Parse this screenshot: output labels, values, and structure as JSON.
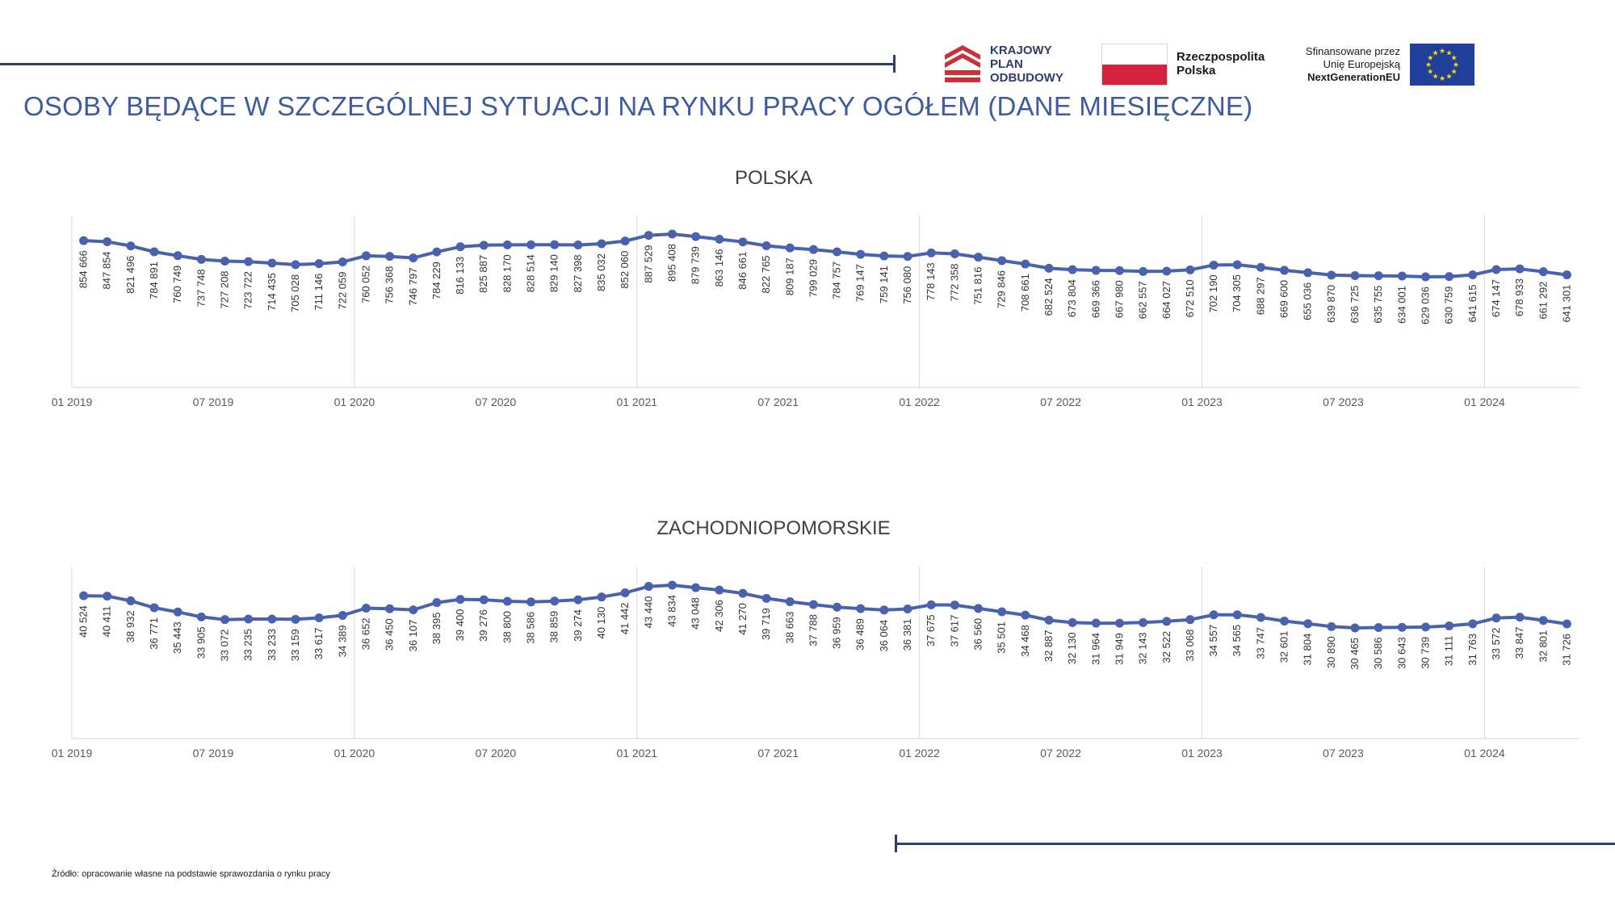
{
  "header": {
    "title": "OSOBY BĘDĄCE W SZCZEGÓLNEJ SYTUACJI NA RYNKU PRACY OGÓŁEM (DANE MIESIĘCZNE)"
  },
  "logos": {
    "kpo": {
      "line1": "KRAJOWY",
      "line2": "PLAN",
      "line3": "ODBUDOWY"
    },
    "rp": {
      "line1": "Rzeczpospolita",
      "line2": "Polska"
    },
    "eu": {
      "line1": "Sfinansowane przez",
      "line2": "Unię Europejską",
      "line3": "NextGenerationEU"
    }
  },
  "colors": {
    "accent": "#3e5aa3",
    "line": "#4a62ad",
    "rule": "#2f3c6e",
    "flag_red": "#d4213d",
    "eu_blue": "#1f3f9a",
    "eu_star": "#ffdd00"
  },
  "source": "Źródło: opracowanie własne na podstawie sprawozdania o rynku pracy",
  "chart_data": [
    {
      "type": "line",
      "title": "POLSKA",
      "x_tick_labels": [
        "01 2019",
        "07 2019",
        "01 2020",
        "07 2020",
        "01 2021",
        "07 2021",
        "01 2022",
        "07 2022",
        "01 2023",
        "07 2023",
        "01 2024"
      ],
      "values": [
        854666,
        847854,
        821496,
        784891,
        760749,
        737748,
        727208,
        723722,
        714435,
        705028,
        711146,
        722059,
        760052,
        756368,
        746797,
        784229,
        816133,
        825887,
        828170,
        828514,
        829140,
        827398,
        835032,
        852060,
        887529,
        895408,
        879739,
        863146,
        846661,
        822765,
        809187,
        799029,
        784757,
        769147,
        759141,
        756080,
        778143,
        772358,
        751816,
        729846,
        708661,
        682524,
        673804,
        669366,
        667980,
        662557,
        664027,
        672510,
        702190,
        704305,
        688297,
        669600,
        655036,
        639870,
        636725,
        635755,
        634001,
        629036,
        630759,
        641615,
        674147,
        678933,
        661292,
        641301
      ],
      "labels": [
        "854 666",
        "847 854",
        "821 496",
        "784 891",
        "760 749",
        "737 748",
        "727 208",
        "723 722",
        "714 435",
        "705 028",
        "711 146",
        "722 059",
        "760 052",
        "756 368",
        "746 797",
        "784 229",
        "816 133",
        "825 887",
        "828 170",
        "828 514",
        "829 140",
        "827 398",
        "835 032",
        "852 060",
        "887 529",
        "895 408",
        "879 739",
        "863 146",
        "846 661",
        "822 765",
        "809 187",
        "799 029",
        "784 757",
        "769 147",
        "759 141",
        "756 080",
        "778 143",
        "772 358",
        "751 816",
        "729 846",
        "708 661",
        "682 524",
        "673 804",
        "669 366",
        "667 980",
        "662 557",
        "664 027",
        "672 510",
        "702 190",
        "704 305",
        "688 297",
        "669 600",
        "655 036",
        "639 870",
        "636 725",
        "635 755",
        "634 001",
        "629 036",
        "630 759",
        "641 615",
        "674 147",
        "678 933",
        "661 292",
        "641 301"
      ]
    },
    {
      "type": "line",
      "title": "ZACHODNIOPOMORSKIE",
      "x_tick_labels": [
        "01 2019",
        "07 2019",
        "01 2020",
        "07 2020",
        "01 2021",
        "07 2021",
        "01 2022",
        "07 2022",
        "01 2023",
        "07 2023",
        "01 2024"
      ],
      "values": [
        40524,
        40411,
        38932,
        36771,
        35443,
        33905,
        33072,
        33235,
        33233,
        33159,
        33617,
        34389,
        36652,
        36450,
        36107,
        38395,
        39400,
        39276,
        38800,
        38586,
        38859,
        39274,
        40130,
        41442,
        43440,
        43834,
        43048,
        42306,
        41270,
        39719,
        38663,
        37788,
        36959,
        36489,
        36064,
        36381,
        37675,
        37617,
        36560,
        35501,
        34468,
        32887,
        32130,
        31964,
        31949,
        32143,
        32522,
        33068,
        34557,
        34565,
        33747,
        32601,
        31804,
        30890,
        30465,
        30586,
        30643,
        30739,
        31111,
        31763,
        33572,
        33847,
        32801,
        31726
      ],
      "labels": [
        "40 524",
        "40 411",
        "38 932",
        "36 771",
        "35 443",
        "33 905",
        "33 072",
        "33 235",
        "33 233",
        "33 159",
        "33 617",
        "34 389",
        "36 652",
        "36 450",
        "36 107",
        "38 395",
        "39 400",
        "39 276",
        "38 800",
        "38 586",
        "38 859",
        "39 274",
        "40 130",
        "41 442",
        "43 440",
        "43 834",
        "43 048",
        "42 306",
        "41 270",
        "39 719",
        "38 663",
        "37 788",
        "36 959",
        "36 489",
        "36 064",
        "36 381",
        "37 675",
        "37 617",
        "36 560",
        "35 501",
        "34 468",
        "32 887",
        "32 130",
        "31 964",
        "31 949",
        "32 143",
        "32 522",
        "33 068",
        "34 557",
        "34 565",
        "33 747",
        "32 601",
        "31 804",
        "30 890",
        "30 465",
        "30 586",
        "30 643",
        "30 739",
        "31 111",
        "31 763",
        "33 572",
        "33 847",
        "32 801",
        "31 726"
      ]
    }
  ]
}
